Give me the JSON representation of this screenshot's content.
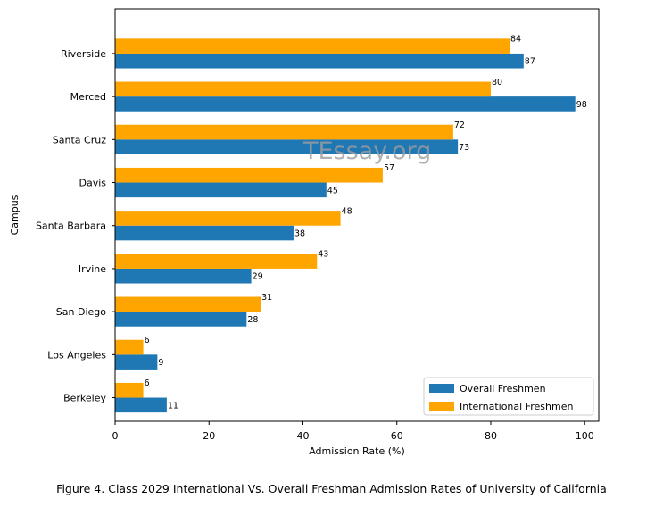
{
  "chart_data": {
    "type": "bar",
    "orientation": "horizontal",
    "categories": [
      "Berkeley",
      "Los Angeles",
      "San Diego",
      "Irvine",
      "Santa Barbara",
      "Davis",
      "Santa Cruz",
      "Merced",
      "Riverside"
    ],
    "series": [
      {
        "name": "Overall Freshmen",
        "color": "#1f77b4",
        "values": [
          11,
          9,
          28,
          29,
          38,
          45,
          73,
          98,
          87
        ]
      },
      {
        "name": "International Freshmen",
        "color": "#ffa500",
        "values": [
          6,
          6,
          31,
          43,
          48,
          57,
          72,
          80,
          84
        ]
      }
    ],
    "xlabel": "Admission Rate (%)",
    "ylabel": "Campus",
    "xlim": [
      0,
      103
    ],
    "xticks": [
      0,
      20,
      40,
      60,
      80,
      100
    ],
    "legend_position": "lower-right",
    "title": ""
  },
  "caption": "Figure 4. Class 2029 International Vs. Overall Freshman Admission Rates of University of California",
  "watermark": "TEssay.org"
}
